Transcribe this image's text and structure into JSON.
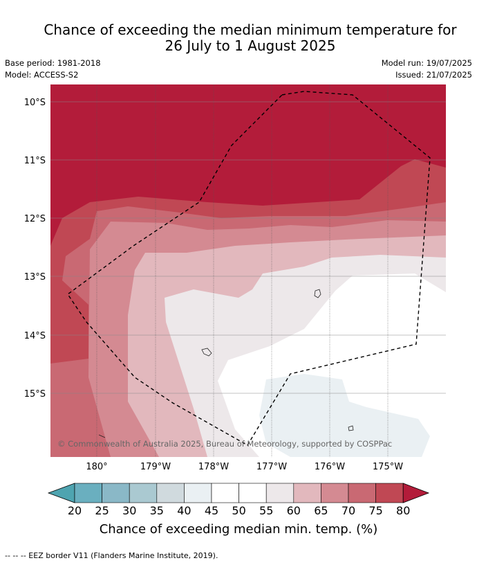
{
  "title": {
    "line1": "Chance of exceeding the median minimum temperature for",
    "line2": "26 July to 1 August 2025"
  },
  "meta": {
    "base_period": "Base period: 1981-2018",
    "model": "Model: ACCESS-S2",
    "model_run": "Model run: 19/07/2025",
    "issued": "Issued: 21/07/2025"
  },
  "map": {
    "lat_labels": [
      "10°S",
      "11°S",
      "12°S",
      "13°S",
      "14°S",
      "15°S"
    ],
    "lon_labels": [
      "180°",
      "179°W",
      "178°W",
      "177°W",
      "176°W",
      "175°W"
    ],
    "copyright": "© Commonwealth of Australia 2025, Bureau of Meteorology, supported by COSPPac",
    "eez_border_style": "dashed black line"
  },
  "colorbar": {
    "ticks": [
      "20",
      "25",
      "30",
      "35",
      "40",
      "45",
      "50",
      "55",
      "60",
      "65",
      "70",
      "75",
      "80"
    ],
    "colors": [
      "#4ea4b0",
      "#6aafbf",
      "#8ab8c7",
      "#aac9d1",
      "#d0dade",
      "#eaf0f3",
      "#ffffff",
      "#ffffff",
      "#ede8ea",
      "#e2b8bd",
      "#d48a92",
      "#c96973",
      "#c04854",
      "#b31c3a"
    ],
    "label": "Chance of exceeding median min. temp. (%)"
  },
  "footer": "--  --  -- EEZ border V11 (Flanders Marine Institute, 2019)."
}
